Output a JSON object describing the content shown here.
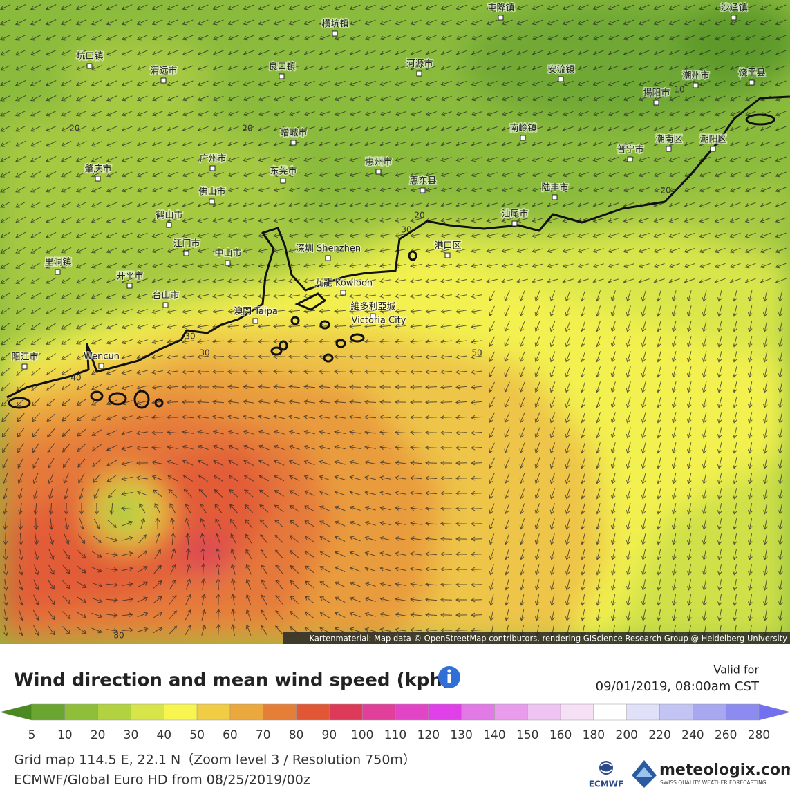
{
  "map": {
    "places": [
      "坑口镇",
      "清远市",
      "良口镇",
      "河源市",
      "安流镇",
      "潮州市",
      "饶平县",
      "揭阳市",
      "横坑镇",
      "屯降镇",
      "沙迳镇",
      "增城市",
      "南岭镇",
      "潮南区",
      "潮阳区",
      "普宁市",
      "广州市",
      "东莞市",
      "惠州市",
      "肇庆市",
      "惠东县",
      "佛山市",
      "陆丰市",
      "鹤山市",
      "汕尾市",
      "江门市",
      "中山市",
      "深圳 Shenzhen",
      "港口区",
      "里洞镇",
      "开平市",
      "九龍 Kowloon",
      "台山市",
      "澳門 Taipa",
      "維多利亞城",
      "Victoria City",
      "阳江市",
      "Wencun"
    ],
    "contour_labels": [
      20,
      20,
      10,
      20,
      20,
      30,
      50,
      40,
      30,
      30,
      80
    ],
    "attribution": "Kartenmaterial: Map data © OpenStreetMap contributors, rendering GIScience Research Group @ Heidelberg University"
  },
  "panel": {
    "title": "Wind direction and mean wind speed (kph)",
    "valid_label": "Valid for",
    "valid_time": "09/01/2019, 08:00am CST",
    "legend": {
      "ticks": [
        5,
        10,
        20,
        30,
        40,
        50,
        60,
        70,
        80,
        90,
        100,
        110,
        120,
        130,
        140,
        150,
        160,
        180,
        200,
        220,
        240,
        260,
        280
      ],
      "colors": [
        "#6aa530",
        "#8fbf38",
        "#b3d23f",
        "#d8e54a",
        "#f8f550",
        "#f1cd45",
        "#eba83d",
        "#e57f38",
        "#e15736",
        "#dc3a58",
        "#e0409a",
        "#e244c6",
        "#e040e8",
        "#e27ae6",
        "#ea9cec",
        "#f0c4f2",
        "#f6e0f6",
        "#ffffff",
        "#e0e0f8",
        "#c4c4f4",
        "#a8a8f0",
        "#8c8cf0"
      ],
      "low_color": "#4a8a20",
      "high_color": "#7070f0"
    },
    "grid_info": "Grid map 114.5 E, 22.1 N（Zoom level 3 / Resolution 750m）",
    "model": "ECMWF/Global Euro HD from 08/25/2019/00z",
    "ecmwf": "ECMWF",
    "brand": "meteologix.com",
    "tagline": "SWISS QUALITY WEATHER FORECASTING"
  }
}
